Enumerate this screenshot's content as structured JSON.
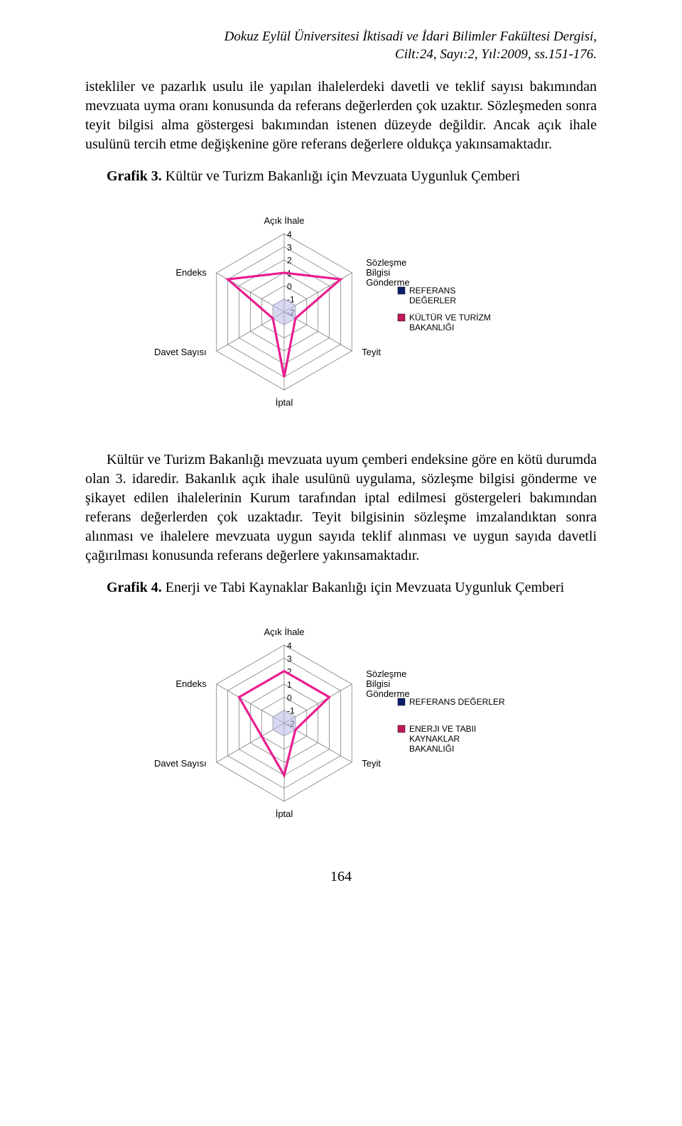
{
  "header": {
    "line1": "Dokuz Eylül Üniversitesi İktisadi ve İdari Bilimler Fakültesi Dergisi,",
    "line2": "Cilt:24, Sayı:2, Yıl:2009, ss.151-176."
  },
  "para1": "istekliler ve pazarlık usulu ile yapılan ihalelerdeki davetli ve teklif sayısı bakımından mevzuata uyma oranı konusunda da referans değerlerden çok uzaktır. Sözleşmeden sonra teyit bilgisi alma göstergesi bakımından istenen düzeyde değildir. Ancak açık ihale usulünü tercih etme değişkenine göre referans değerlere oldukça yakınsamaktadır.",
  "graphic3_title_bold": "Grafik 3.",
  "graphic3_title_rest": " Kültür ve Turizm Bakanlığı için Mevzuata Uygunluk Çemberi",
  "para2": "Kültür ve Turizm Bakanlığı mevzuata uyum çemberi endeksine göre en kötü durumda olan 3. idaredir. Bakanlık açık ihale usulünü uygulama, sözleşme bilgisi gönderme ve şikayet edilen ihalelerinin Kurum tarafından iptal edilmesi göstergeleri bakımından referans değerlerden çok uzaktadır. Teyit bilgisinin sözleşme imzalandıktan sonra alınması ve ihalelere mevzuata uygun sayıda teklif alınması ve uygun sayıda davetli çağırılması konusunda referans değerlere yakınsamaktadır.",
  "graphic4_title_bold": "Grafik 4.",
  "graphic4_title_rest": " Enerji ve Tabi Kaynaklar Bakanlığı için Mevzuata Uygunluk Çemberi",
  "page_number": "164",
  "radar": {
    "axes": [
      "Açık İhale",
      "Sözleşme Bilgisi Gönderme",
      "Teyit",
      "İptal",
      "Davet Sayısı",
      "Endeks"
    ],
    "ticks": [
      -2,
      -1,
      0,
      1,
      2,
      3,
      4
    ],
    "tick_labels": [
      "-2",
      "-1",
      "0",
      "1",
      "2",
      "3",
      "4"
    ],
    "grid_color": "#808080",
    "grid_width": 0.8,
    "background_color": "#ffffff",
    "inner_fill": "#b8b8e8",
    "inner_fill_opacity": 0.55,
    "line_width": 3.2
  },
  "chart3": {
    "series": [
      {
        "name": "REFERANS DEĞERLER",
        "marker_color": "#0b1f6d",
        "values": [
          -2,
          -2,
          -2,
          -2,
          -2,
          -2
        ]
      },
      {
        "name_line1": "KÜLTÜR VE TURİZM",
        "name_line2": "BAKANLIĞI",
        "marker_color": "#c2185b",
        "line_color": "#e91e90",
        "values": [
          1,
          3,
          -1,
          3,
          -1,
          3
        ]
      }
    ]
  },
  "chart4": {
    "series": [
      {
        "name": "REFERANS DEĞERLER",
        "marker_color": "#0b1f6d",
        "values": [
          -2,
          -2,
          -2,
          -2,
          -2,
          -2
        ]
      },
      {
        "name_line1": "ENERJI VE TABII",
        "name_line2": "KAYNAKLAR",
        "name_line3": "BAKANLIĞI",
        "marker_color": "#c2185b",
        "line_color": "#e91e90",
        "values": [
          2,
          2,
          -1,
          2,
          0,
          2
        ]
      }
    ]
  }
}
